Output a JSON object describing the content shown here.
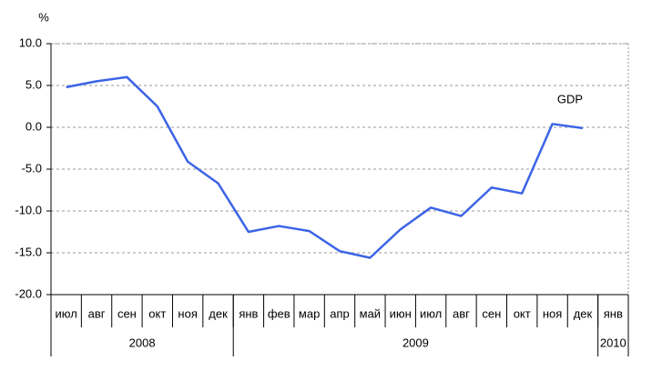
{
  "chart_data": {
    "type": "line",
    "y_label": "%",
    "categories": [
      "июл",
      "авг",
      "сен",
      "окт",
      "ноя",
      "дек",
      "янв",
      "фев",
      "мар",
      "апр",
      "май",
      "июн",
      "июл",
      "авг",
      "сен",
      "окт",
      "ноя",
      "дек",
      "янв"
    ],
    "year_groups": [
      {
        "label": "2008",
        "months": 6
      },
      {
        "label": "2009",
        "months": 12
      },
      {
        "label": "2010",
        "months": 1
      }
    ],
    "series": [
      {
        "name": "GDP",
        "color": "#3c64e6",
        "values": [
          4.8,
          5.5,
          6.0,
          2.5,
          -4.1,
          -6.7,
          -12.5,
          -11.8,
          -12.4,
          -14.8,
          -15.6,
          -12.2,
          -9.6,
          -10.6,
          -7.2,
          -7.9,
          0.4,
          -0.1,
          null
        ]
      }
    ],
    "ylim": [
      -20,
      10
    ],
    "yticks": [
      {
        "value": -20,
        "label": "-20.0"
      },
      {
        "value": -15,
        "label": "-15.0"
      },
      {
        "value": -10,
        "label": "-10.0"
      },
      {
        "value": -5,
        "label": "-5.0"
      },
      {
        "value": 0,
        "label": "0.0"
      },
      {
        "value": 5,
        "label": "5.0"
      },
      {
        "value": 10,
        "label": "10.0"
      }
    ],
    "grid": true
  }
}
